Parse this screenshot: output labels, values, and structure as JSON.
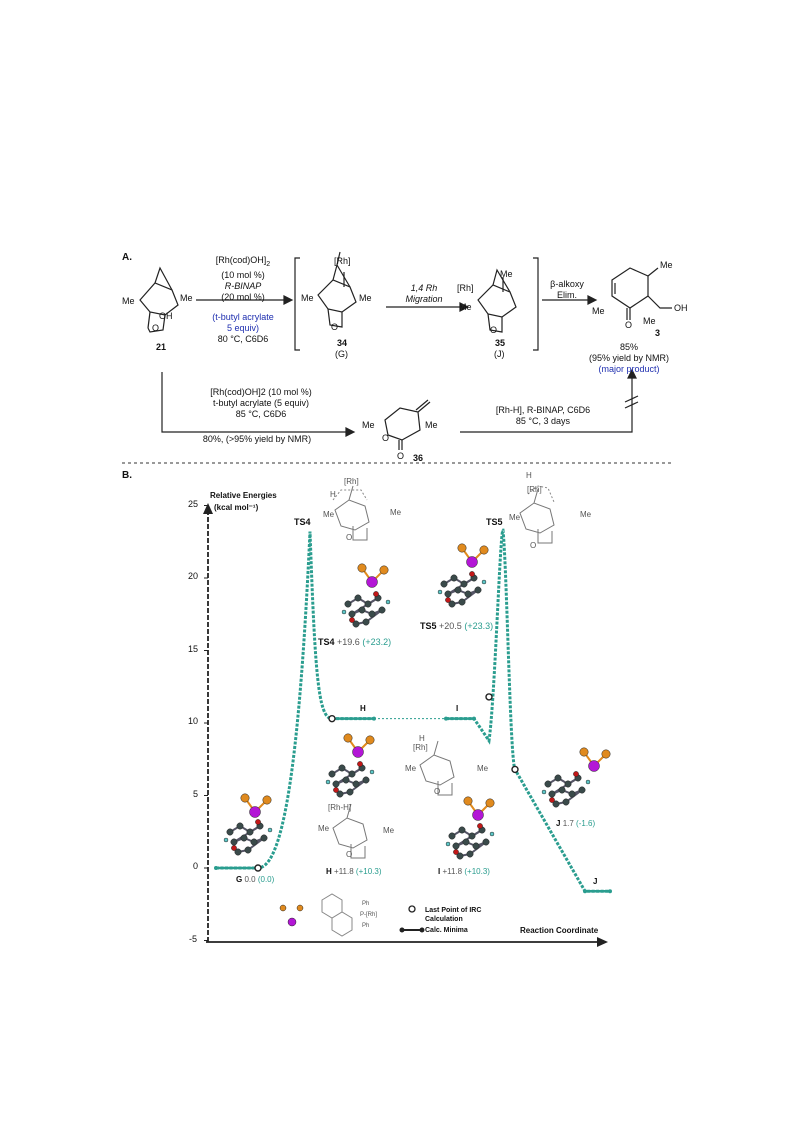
{
  "panelA": {
    "label": "A.",
    "compound21": {
      "me_left": "Me",
      "me_right": "Me",
      "oh": "OH",
      "o": "O",
      "number": "21"
    },
    "step1": {
      "line1": "[Rh(cod)OH]",
      "line1_sub": "2",
      "line2": "(10 mol %)",
      "line3": "R-BINAP",
      "line4": "(20 mol %)",
      "line5": "(t-butyl acrylate",
      "line6": "5 equiv)",
      "line7": "80 °C, C6D6"
    },
    "compound34": {
      "rh": "[Rh]",
      "me_left": "Me",
      "me_right": "Me",
      "o": "O",
      "number": "34",
      "sublabel": "(G)"
    },
    "migration": {
      "line1": "1,4 Rh",
      "line2": "Migration"
    },
    "compound35": {
      "rh": "[Rh]",
      "me_top": "Me",
      "me_left": "Me",
      "o": "O",
      "number": "35",
      "sublabel": "(J)"
    },
    "elim": {
      "line1": "β-alkoxy",
      "line2": "Elim."
    },
    "compound3": {
      "me_top": "Me",
      "me_left": "Me",
      "me_bottom": "Me",
      "o": "O",
      "oh": "OH",
      "number": "3"
    },
    "yield3": {
      "line1": "85%",
      "line2": "(95% yield by NMR)",
      "line3": "(major product)"
    },
    "step2": {
      "line1": "[Rh(cod)OH]2 (10 mol %)",
      "line2": "t-butyl acrylate (5 equiv)",
      "line3": "85 °C, C6D6",
      "line4": "80%, (>95% yield by NMR)"
    },
    "compound36": {
      "me_left": "Me",
      "me_right": "Me",
      "o1": "O",
      "o2": "O",
      "number": "36"
    },
    "step3": {
      "line1": "[Rh-H], R-BINAP, C6D6",
      "line2": "85 °C, 3 days"
    }
  },
  "panelB": {
    "label": "B.",
    "ylabel_line1": "Relative Energies",
    "ylabel_line2": "(kcal mol⁻¹)",
    "xlabel": "Reaction Coordinate",
    "y_ticks": [
      "25",
      "20",
      "15",
      "10",
      "5",
      "0",
      "-5"
    ],
    "ts4": {
      "top": "TS4",
      "label": "TS4",
      "value": "+19.6",
      "paren": "(+23.2)"
    },
    "ts5": {
      "top": "TS5",
      "label": "TS5",
      "value": "+20.5",
      "paren": "(+23.3)"
    },
    "g": {
      "label": "G",
      "value": "0.0",
      "paren": "(0.0)"
    },
    "h": {
      "top": "H",
      "label": "H",
      "value": "+11.8",
      "paren": "(+10.3)"
    },
    "i": {
      "top": "I",
      "label": "I",
      "value": "+11.8",
      "paren": "(+10.3)"
    },
    "j": {
      "label": "J",
      "value": "1.7",
      "paren": "(-1.6)",
      "end": "J"
    },
    "structs": {
      "rh": "[Rh]",
      "rhh": "[Rh-H]",
      "h": "H",
      "me": "Me",
      "o": "O",
      "ph": "Ph",
      "p": "P",
      "prh": "P-[Rh]"
    },
    "legend": {
      "irc_line1": "Last Point of IRC",
      "irc_line2": "Calculation",
      "minima": "Calc. Minima"
    },
    "colors": {
      "teal": "#2a9d8f",
      "purple": "#b316d6",
      "orange": "#e08a1e",
      "dark": "#3a4a4a",
      "red": "#c21818"
    }
  },
  "chart_data": {
    "type": "line",
    "title": "",
    "xlabel": "Reaction Coordinate",
    "ylabel": "Relative Energies (kcal mol⁻¹)",
    "ylim": [
      -5,
      25
    ],
    "points": [
      {
        "name": "G",
        "y": 0.0
      },
      {
        "name": "TS4",
        "y": 23.2
      },
      {
        "name": "H",
        "y": 10.3
      },
      {
        "name": "I",
        "y": 10.3
      },
      {
        "name": "TS5",
        "y": 23.3
      },
      {
        "name": "J",
        "y": -1.6
      }
    ]
  }
}
